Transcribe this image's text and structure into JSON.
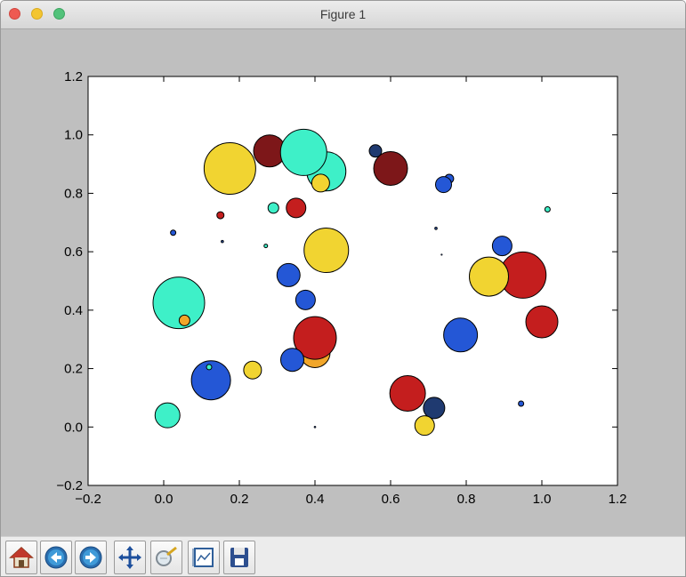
{
  "window": {
    "title": "Figure 1"
  },
  "toolbar": {
    "buttons": [
      {
        "icon": "home-icon"
      },
      {
        "icon": "back-arrow-icon"
      },
      {
        "icon": "forward-arrow-icon"
      },
      {
        "icon": "pan-icon"
      },
      {
        "icon": "zoom-icon"
      },
      {
        "icon": "subplots-icon"
      },
      {
        "icon": "save-icon"
      }
    ]
  },
  "chart_data": {
    "type": "scatter",
    "title": "",
    "xlabel": "",
    "ylabel": "",
    "xlim": [
      -0.2,
      1.2
    ],
    "ylim": [
      -0.2,
      1.2
    ],
    "xticks": [
      "−0.2",
      "0.0",
      "0.2",
      "0.4",
      "0.6",
      "0.8",
      "1.0",
      "1.2"
    ],
    "yticks": [
      "−0.2",
      "0.0",
      "0.2",
      "0.4",
      "0.6",
      "0.8",
      "1.0",
      "1.2"
    ],
    "grid": false,
    "colors": {
      "navy": "#1f3a70",
      "blue": "#2457d6",
      "cyan": "#3ef0c8",
      "yellow": "#f1d431",
      "orange": "#f1a62a",
      "red": "#c41e1e",
      "darkred": "#7d1719"
    },
    "points": [
      {
        "x": 0.56,
        "y": 0.945,
        "r": 7,
        "color": "navy"
      },
      {
        "x": 0.6,
        "y": 0.885,
        "r": 19,
        "color": "darkred"
      },
      {
        "x": 0.28,
        "y": 0.945,
        "r": 18,
        "color": "darkred"
      },
      {
        "x": 0.43,
        "y": 0.875,
        "r": 22,
        "color": "cyan"
      },
      {
        "x": 0.37,
        "y": 0.94,
        "r": 26,
        "color": "cyan"
      },
      {
        "x": 0.175,
        "y": 0.885,
        "r": 29,
        "color": "yellow"
      },
      {
        "x": 0.415,
        "y": 0.835,
        "r": 10,
        "color": "yellow"
      },
      {
        "x": 0.755,
        "y": 0.85,
        "r": 5,
        "color": "blue"
      },
      {
        "x": 0.74,
        "y": 0.83,
        "r": 9,
        "color": "blue"
      },
      {
        "x": 0.29,
        "y": 0.75,
        "r": 6,
        "color": "cyan"
      },
      {
        "x": 0.35,
        "y": 0.75,
        "r": 11,
        "color": "red"
      },
      {
        "x": 0.15,
        "y": 0.725,
        "r": 4,
        "color": "red"
      },
      {
        "x": 1.015,
        "y": 0.745,
        "r": 3,
        "color": "cyan"
      },
      {
        "x": 0.025,
        "y": 0.665,
        "r": 3,
        "color": "blue"
      },
      {
        "x": 0.155,
        "y": 0.635,
        "r": 1.5,
        "color": "navy"
      },
      {
        "x": 0.27,
        "y": 0.62,
        "r": 2,
        "color": "cyan"
      },
      {
        "x": 0.72,
        "y": 0.68,
        "r": 1.5,
        "color": "navy"
      },
      {
        "x": 0.735,
        "y": 0.59,
        "r": 0.8,
        "color": "navy"
      },
      {
        "x": 0.43,
        "y": 0.605,
        "r": 25,
        "color": "yellow"
      },
      {
        "x": 0.895,
        "y": 0.62,
        "r": 11,
        "color": "blue"
      },
      {
        "x": 0.95,
        "y": 0.52,
        "r": 26,
        "color": "red"
      },
      {
        "x": 0.86,
        "y": 0.515,
        "r": 22,
        "color": "yellow"
      },
      {
        "x": 0.33,
        "y": 0.52,
        "r": 13,
        "color": "blue"
      },
      {
        "x": 0.375,
        "y": 0.435,
        "r": 11,
        "color": "blue"
      },
      {
        "x": 0.04,
        "y": 0.425,
        "r": 29,
        "color": "cyan"
      },
      {
        "x": 0.055,
        "y": 0.365,
        "r": 6,
        "color": "orange"
      },
      {
        "x": 1.0,
        "y": 0.36,
        "r": 18,
        "color": "red"
      },
      {
        "x": 0.785,
        "y": 0.315,
        "r": 19,
        "color": "blue"
      },
      {
        "x": 0.4,
        "y": 0.255,
        "r": 17,
        "color": "orange"
      },
      {
        "x": 0.4,
        "y": 0.305,
        "r": 24,
        "color": "red"
      },
      {
        "x": 0.34,
        "y": 0.23,
        "r": 13,
        "color": "blue"
      },
      {
        "x": 0.235,
        "y": 0.195,
        "r": 10,
        "color": "yellow"
      },
      {
        "x": 0.125,
        "y": 0.16,
        "r": 22,
        "color": "blue"
      },
      {
        "x": 0.12,
        "y": 0.205,
        "r": 3,
        "color": "cyan"
      },
      {
        "x": 0.645,
        "y": 0.115,
        "r": 20,
        "color": "red"
      },
      {
        "x": 0.715,
        "y": 0.065,
        "r": 12,
        "color": "navy"
      },
      {
        "x": 0.69,
        "y": 0.005,
        "r": 11,
        "color": "yellow"
      },
      {
        "x": 0.945,
        "y": 0.08,
        "r": 3,
        "color": "blue"
      },
      {
        "x": 0.01,
        "y": 0.04,
        "r": 14,
        "color": "cyan"
      },
      {
        "x": 0.4,
        "y": 0.0,
        "r": 1,
        "color": "navy"
      }
    ]
  }
}
